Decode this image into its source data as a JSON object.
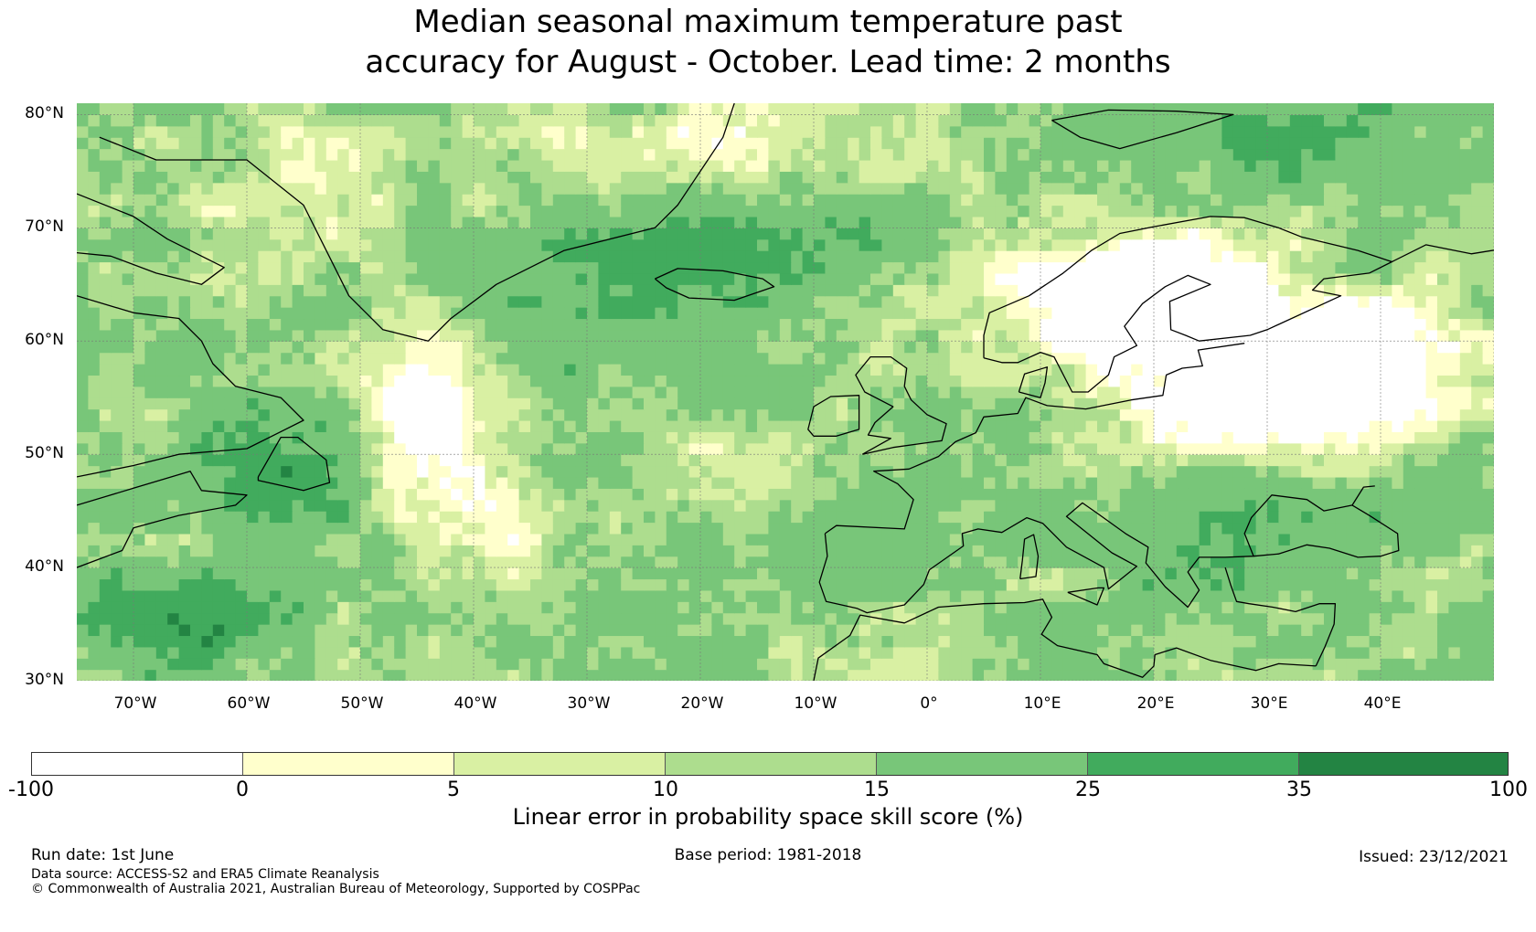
{
  "title": {
    "line1": "Median seasonal maximum temperature past",
    "line2": "accuracy for August - October. Lead time: 2 months"
  },
  "map": {
    "region": "North Atlantic and Europe",
    "lat_labels": [
      "80°N",
      "70°N",
      "60°N",
      "50°N",
      "40°N",
      "30°N"
    ],
    "lon_labels": [
      "70°W",
      "60°W",
      "50°W",
      "40°W",
      "30°W",
      "20°W",
      "10°W",
      "0°",
      "10°E",
      "20°E",
      "30°E",
      "40°E"
    ],
    "lat_range": [
      30,
      81
    ],
    "lon_range": [
      -75,
      50
    ]
  },
  "colorbar": {
    "label": "Linear error in probability space skill score (%)",
    "ticks": [
      "-100",
      "0",
      "5",
      "10",
      "15",
      "25",
      "35",
      "100"
    ],
    "colors": [
      "#ffffff",
      "#ffffcc",
      "#d9f0a3",
      "#addd8e",
      "#78c679",
      "#41ab5d",
      "#238443"
    ]
  },
  "footer": {
    "run_date": "Run date: 1st June",
    "base_period": "Base period: 1981-2018",
    "issued": "Issued: 23/12/2021",
    "data_source": "Data source: ACCESS-S2 and ERA5 Climate Reanalysis",
    "copyright": "© Commonwealth of Australia 2021, Australian Bureau of Meteorology, Supported by COSPPac"
  }
}
